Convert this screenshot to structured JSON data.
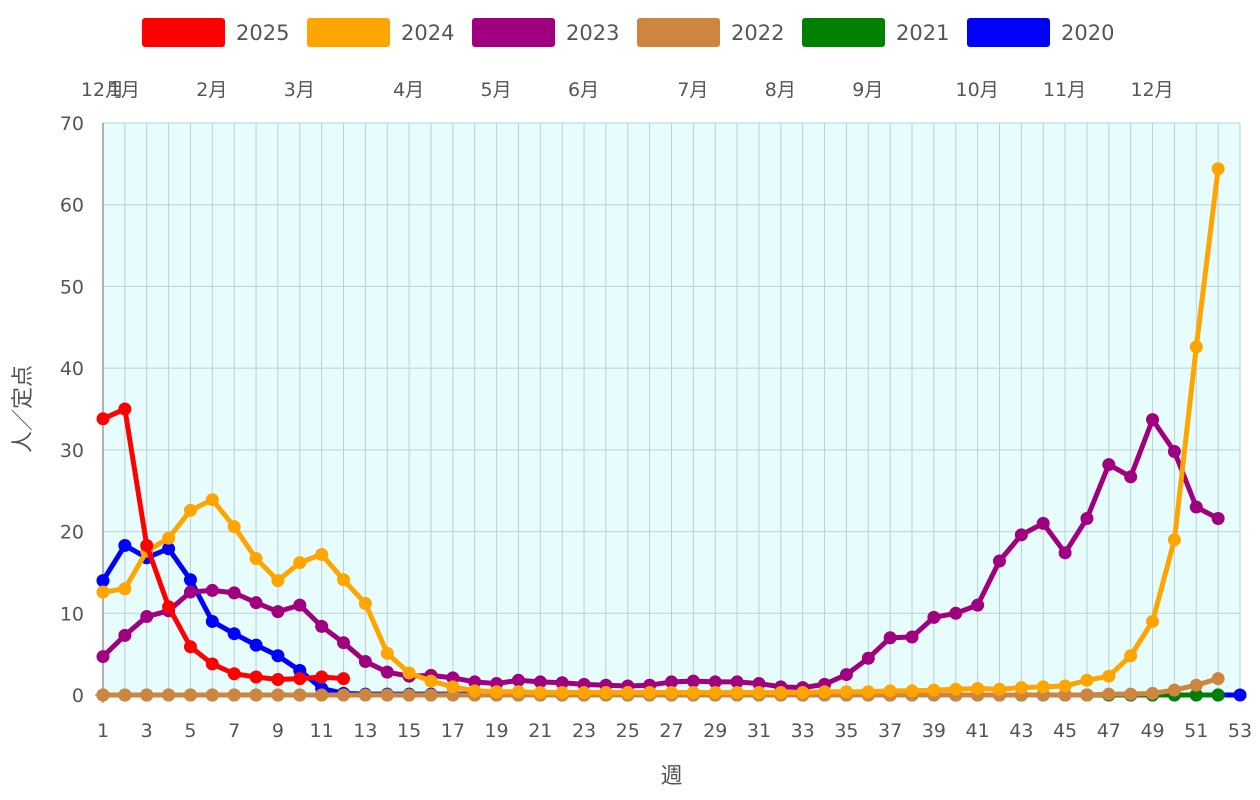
{
  "chart_data": {
    "type": "line",
    "xlabel": "週",
    "ylabel": "人／定点",
    "xlim": [
      1,
      53
    ],
    "ylim": [
      0,
      70
    ],
    "y_ticks": [
      0,
      10,
      20,
      30,
      40,
      50,
      60,
      70
    ],
    "x_ticks": [
      1,
      3,
      5,
      7,
      9,
      11,
      13,
      15,
      17,
      19,
      21,
      23,
      25,
      27,
      29,
      31,
      33,
      35,
      37,
      39,
      41,
      43,
      45,
      47,
      49,
      51,
      53
    ],
    "month_labels": [
      {
        "label": "12月",
        "week": 1
      },
      {
        "label": "1月",
        "week": 2
      },
      {
        "label": "2月",
        "week": 6
      },
      {
        "label": "3月",
        "week": 10
      },
      {
        "label": "4月",
        "week": 15
      },
      {
        "label": "5月",
        "week": 19
      },
      {
        "label": "6月",
        "week": 23
      },
      {
        "label": "7月",
        "week": 28
      },
      {
        "label": "8月",
        "week": 32
      },
      {
        "label": "9月",
        "week": 36
      },
      {
        "label": "10月",
        "week": 41
      },
      {
        "label": "11月",
        "week": 45
      },
      {
        "label": "12月",
        "week": 49
      }
    ],
    "grid": true,
    "legend_position": "top",
    "background_color": "#e6fcfd",
    "series": [
      {
        "name": "2025",
        "color": "#ff0000",
        "start_week": 1,
        "values": [
          33.8,
          35.0,
          18.3,
          10.8,
          5.9,
          3.8,
          2.6,
          2.2,
          1.9,
          2.0,
          2.2,
          2.0
        ]
      },
      {
        "name": "2024",
        "color": "#ffa500",
        "start_week": 1,
        "values": [
          12.6,
          13.0,
          17.6,
          19.2,
          22.6,
          23.9,
          20.6,
          16.7,
          14.0,
          16.2,
          17.2,
          14.1,
          11.2,
          5.1,
          2.7,
          1.7,
          1.0,
          0.5,
          0.4,
          0.4,
          0.3,
          0.3,
          0.3,
          0.3,
          0.3,
          0.3,
          0.3,
          0.3,
          0.3,
          0.3,
          0.3,
          0.3,
          0.3,
          0.4,
          0.4,
          0.4,
          0.5,
          0.5,
          0.6,
          0.7,
          0.8,
          0.7,
          0.9,
          1.0,
          1.1,
          1.8,
          2.3,
          4.8,
          9.0,
          19.0,
          42.6,
          64.4
        ]
      },
      {
        "name": "2023",
        "color": "#a0007f",
        "start_week": 1,
        "values": [
          4.7,
          7.3,
          9.6,
          10.3,
          12.6,
          12.8,
          12.5,
          11.3,
          10.2,
          11.0,
          8.4,
          6.4,
          4.1,
          2.8,
          2.3,
          2.4,
          2.1,
          1.6,
          1.4,
          1.8,
          1.6,
          1.5,
          1.3,
          1.2,
          1.1,
          1.2,
          1.6,
          1.7,
          1.6,
          1.6,
          1.4,
          1.0,
          0.9,
          1.3,
          2.5,
          4.5,
          7.0,
          7.1,
          9.5,
          10.0,
          11.0,
          16.4,
          19.6,
          21.0,
          17.4,
          21.6,
          28.2,
          26.7,
          33.7,
          29.8,
          23.0,
          21.6
        ]
      },
      {
        "name": "2022",
        "color": "#cd853f",
        "start_week": 1,
        "values": [
          0,
          0,
          0,
          0,
          0,
          0,
          0,
          0,
          0,
          0,
          0,
          0,
          0,
          0,
          0,
          0,
          0,
          0,
          0,
          0,
          0,
          0,
          0,
          0,
          0,
          0,
          0,
          0,
          0,
          0,
          0,
          0,
          0,
          0,
          0,
          0,
          0,
          0,
          0,
          0,
          0,
          0,
          0,
          0,
          0,
          0,
          0.1,
          0.1,
          0.2,
          0.6,
          1.2,
          2.0
        ]
      },
      {
        "name": "2021",
        "color": "#008000",
        "start_week": 1,
        "values": [
          0,
          0,
          0,
          0,
          0,
          0,
          0,
          0,
          0,
          0,
          0,
          0,
          0,
          0,
          0,
          0,
          0,
          0,
          0,
          0,
          0,
          0,
          0,
          0,
          0,
          0,
          0,
          0,
          0,
          0,
          0,
          0,
          0,
          0,
          0,
          0,
          0,
          0,
          0,
          0,
          0,
          0,
          0,
          0,
          0,
          0,
          0,
          0,
          0,
          0,
          0,
          0
        ]
      },
      {
        "name": "2020",
        "color": "#0000ff",
        "start_week": 1,
        "values": [
          14.0,
          18.3,
          16.8,
          17.9,
          14.1,
          9.0,
          7.5,
          6.1,
          4.8,
          3.0,
          0.8,
          0.2,
          0.1,
          0.1,
          0.1,
          0.1,
          0.1,
          0.1,
          0,
          0,
          0,
          0,
          0,
          0,
          0,
          0,
          0,
          0,
          0,
          0,
          0,
          0,
          0,
          0,
          0,
          0,
          0,
          0,
          0,
          0,
          0,
          0,
          0,
          0,
          0,
          0,
          0,
          0,
          0,
          0,
          0,
          0,
          0
        ]
      }
    ],
    "draw_order": [
      "2020",
      "2021",
      "2022",
      "2023",
      "2024",
      "2025"
    ]
  }
}
